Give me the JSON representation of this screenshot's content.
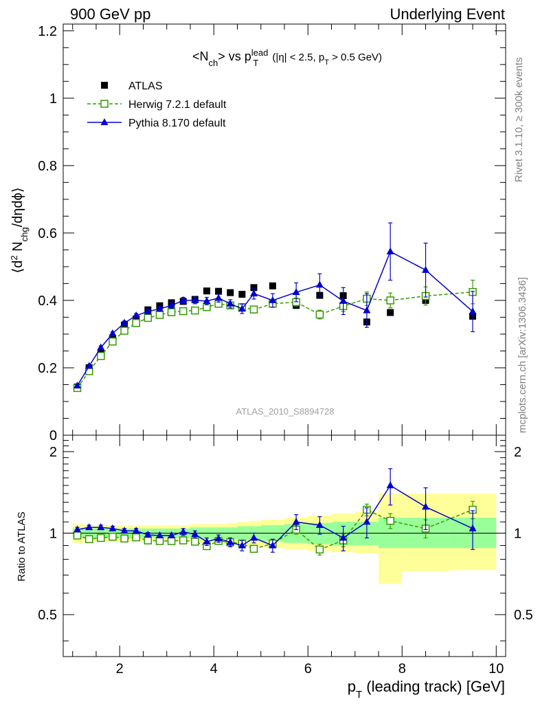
{
  "header": {
    "left": "900 GeV pp",
    "right": "Underlying Event"
  },
  "side_labels": {
    "rivet": "Rivet 3.1.10, ≥ 300k events",
    "mcplots": "mcplots.cern.ch [arXiv:1306.3436]"
  },
  "watermark": "ATLAS_2010_S8894728",
  "chart_data": [
    {
      "type": "scatter",
      "title": "<N_ch> vs p_T^lead (|η| < 2.5, p_T > 0.5 GeV)",
      "ylabel": "⟨d² N_chg/dηdϕ⟩",
      "ylim": [
        0,
        1.22
      ],
      "yticks": [
        0,
        0.2,
        0.4,
        0.6,
        0.8,
        1,
        1.2
      ],
      "ytick_labels": [
        "0",
        "0.2",
        "0.4",
        "0.6",
        "0.8",
        "1",
        "1.2"
      ],
      "xlim": [
        0.8,
        10.2
      ],
      "legend_position": "top-left",
      "series": [
        {
          "name": "ATLAS",
          "marker": "filled-square",
          "color": "#000000",
          "x": [
            1.1,
            1.35,
            1.6,
            1.85,
            2.1,
            2.35,
            2.6,
            2.85,
            3.1,
            3.35,
            3.6,
            3.85,
            4.1,
            4.35,
            4.6,
            4.85,
            5.25,
            5.75,
            6.25,
            6.75,
            7.25,
            7.75,
            8.5,
            9.5
          ],
          "y": [
            0.143,
            0.2,
            0.245,
            0.287,
            0.327,
            0.345,
            0.372,
            0.384,
            0.393,
            0.397,
            0.403,
            0.428,
            0.427,
            0.423,
            0.418,
            0.438,
            0.443,
            0.385,
            0.415,
            0.414,
            0.336,
            0.364,
            0.4,
            0.353
          ]
        },
        {
          "name": "Herwig 7.2.1 default",
          "marker": "open-square",
          "line": "dashed",
          "color": "#339900",
          "x": [
            1.1,
            1.35,
            1.6,
            1.85,
            2.1,
            2.35,
            2.6,
            2.85,
            3.1,
            3.35,
            3.6,
            3.85,
            4.1,
            4.35,
            4.6,
            4.85,
            5.25,
            5.75,
            6.25,
            6.75,
            7.25,
            7.75,
            8.5,
            9.5
          ],
          "y": [
            0.14,
            0.19,
            0.235,
            0.278,
            0.31,
            0.333,
            0.348,
            0.357,
            0.365,
            0.368,
            0.37,
            0.38,
            0.39,
            0.385,
            0.38,
            0.373,
            0.39,
            0.395,
            0.358,
            0.383,
            0.405,
            0.4,
            0.413,
            0.425
          ],
          "yerr": [
            0.004,
            0.004,
            0.004,
            0.005,
            0.005,
            0.005,
            0.005,
            0.005,
            0.006,
            0.006,
            0.006,
            0.007,
            0.007,
            0.008,
            0.009,
            0.009,
            0.01,
            0.012,
            0.013,
            0.016,
            0.02,
            0.022,
            0.027,
            0.035
          ]
        },
        {
          "name": "Pythia 8.170 default",
          "marker": "filled-triangle",
          "line": "solid",
          "color": "#0000cc",
          "x": [
            1.1,
            1.35,
            1.6,
            1.85,
            2.1,
            2.35,
            2.6,
            2.85,
            3.1,
            3.35,
            3.6,
            3.85,
            4.1,
            4.35,
            4.6,
            4.85,
            5.25,
            5.75,
            6.25,
            6.75,
            7.25,
            7.75,
            8.5,
            9.5
          ],
          "y": [
            0.147,
            0.205,
            0.26,
            0.302,
            0.333,
            0.355,
            0.367,
            0.375,
            0.385,
            0.4,
            0.4,
            0.398,
            0.407,
            0.39,
            0.375,
            0.42,
            0.4,
            0.424,
            0.446,
            0.398,
            0.37,
            0.545,
            0.49,
            0.367
          ],
          "yerr": [
            0.004,
            0.005,
            0.005,
            0.005,
            0.006,
            0.006,
            0.007,
            0.007,
            0.008,
            0.009,
            0.01,
            0.011,
            0.012,
            0.012,
            0.014,
            0.016,
            0.02,
            0.028,
            0.033,
            0.04,
            0.05,
            0.085,
            0.08,
            0.06
          ]
        }
      ]
    },
    {
      "type": "scatter",
      "title": "",
      "ylabel": "Ratio to ATLAS",
      "xlabel": "p_T (leading track) [GeV]",
      "xlim": [
        0.8,
        10.2
      ],
      "xticks": [
        2,
        4,
        6,
        8,
        10
      ],
      "xtick_labels": [
        "2",
        "4",
        "6",
        "8",
        "10"
      ],
      "ylim": [
        0.35,
        2.3
      ],
      "yticks": [
        0.5,
        1,
        2
      ],
      "ytick_labels": [
        "0.5",
        "1",
        "2"
      ],
      "reference_line": 1,
      "uncertainty_bands": {
        "bin_edges": [
          1.0,
          1.25,
          1.5,
          1.75,
          2.0,
          2.25,
          2.5,
          2.75,
          3.0,
          3.25,
          3.5,
          3.75,
          4.0,
          4.25,
          4.5,
          4.75,
          5.0,
          5.5,
          6.0,
          6.5,
          7.0,
          7.5,
          8.0,
          9.0,
          10.0
        ],
        "inner_low": [
          0.96,
          0.96,
          0.96,
          0.96,
          0.96,
          0.96,
          0.96,
          0.96,
          0.96,
          0.96,
          0.95,
          0.95,
          0.95,
          0.95,
          0.94,
          0.94,
          0.93,
          0.92,
          0.91,
          0.9,
          0.9,
          0.88,
          0.88,
          0.88
        ],
        "inner_high": [
          1.04,
          1.04,
          1.04,
          1.04,
          1.04,
          1.04,
          1.04,
          1.04,
          1.04,
          1.04,
          1.05,
          1.05,
          1.05,
          1.05,
          1.06,
          1.06,
          1.07,
          1.08,
          1.09,
          1.1,
          1.1,
          1.14,
          1.14,
          1.14
        ],
        "outer_low": [
          0.92,
          0.93,
          0.93,
          0.93,
          0.93,
          0.93,
          0.93,
          0.93,
          0.93,
          0.93,
          0.92,
          0.92,
          0.92,
          0.91,
          0.9,
          0.89,
          0.88,
          0.87,
          0.86,
          0.85,
          0.84,
          0.65,
          0.72,
          0.73
        ],
        "outer_high": [
          1.08,
          1.07,
          1.07,
          1.07,
          1.07,
          1.07,
          1.07,
          1.07,
          1.07,
          1.07,
          1.08,
          1.08,
          1.08,
          1.09,
          1.1,
          1.11,
          1.12,
          1.14,
          1.16,
          1.18,
          1.2,
          1.4,
          1.4,
          1.4
        ],
        "inner_color": "#99ff99",
        "outer_color": "#ffff99"
      },
      "series": [
        {
          "name": "Herwig 7.2.1 default",
          "marker": "open-square",
          "line": "dashed",
          "color": "#339900",
          "x": [
            1.1,
            1.35,
            1.6,
            1.85,
            2.1,
            2.35,
            2.6,
            2.85,
            3.1,
            3.35,
            3.6,
            3.85,
            4.1,
            4.35,
            4.6,
            4.85,
            5.25,
            5.75,
            6.25,
            6.75,
            7.25,
            7.75,
            8.5,
            9.5
          ],
          "y": [
            0.98,
            0.95,
            0.96,
            0.97,
            0.955,
            0.965,
            0.94,
            0.935,
            0.935,
            0.94,
            0.93,
            0.895,
            0.935,
            0.925,
            0.915,
            0.875,
            0.915,
            1.03,
            0.87,
            0.94,
            1.22,
            1.11,
            1.04,
            1.22
          ],
          "yerr": [
            0.02,
            0.02,
            0.02,
            0.02,
            0.02,
            0.02,
            0.02,
            0.02,
            0.02,
            0.02,
            0.02,
            0.02,
            0.02,
            0.02,
            0.025,
            0.025,
            0.03,
            0.04,
            0.04,
            0.05,
            0.06,
            0.07,
            0.08,
            0.09
          ]
        },
        {
          "name": "Pythia 8.170 default",
          "marker": "filled-triangle",
          "line": "solid",
          "color": "#0000cc",
          "x": [
            1.1,
            1.35,
            1.6,
            1.85,
            2.1,
            2.35,
            2.6,
            2.85,
            3.1,
            3.35,
            3.6,
            3.85,
            4.1,
            4.35,
            4.6,
            4.85,
            5.25,
            5.75,
            6.25,
            6.75,
            7.25,
            7.75,
            8.5,
            9.5
          ],
          "y": [
            1.03,
            1.05,
            1.05,
            1.04,
            1.02,
            1.02,
            0.985,
            0.98,
            0.98,
            1.01,
            0.99,
            0.93,
            0.955,
            0.925,
            0.9,
            0.96,
            0.9,
            1.1,
            1.07,
            0.96,
            1.1,
            1.5,
            1.25,
            1.04
          ],
          "yerr": [
            0.02,
            0.02,
            0.02,
            0.02,
            0.02,
            0.02,
            0.02,
            0.02,
            0.02,
            0.03,
            0.03,
            0.03,
            0.03,
            0.035,
            0.04,
            0.04,
            0.05,
            0.07,
            0.08,
            0.1,
            0.14,
            0.23,
            0.22,
            0.17
          ]
        }
      ]
    }
  ]
}
